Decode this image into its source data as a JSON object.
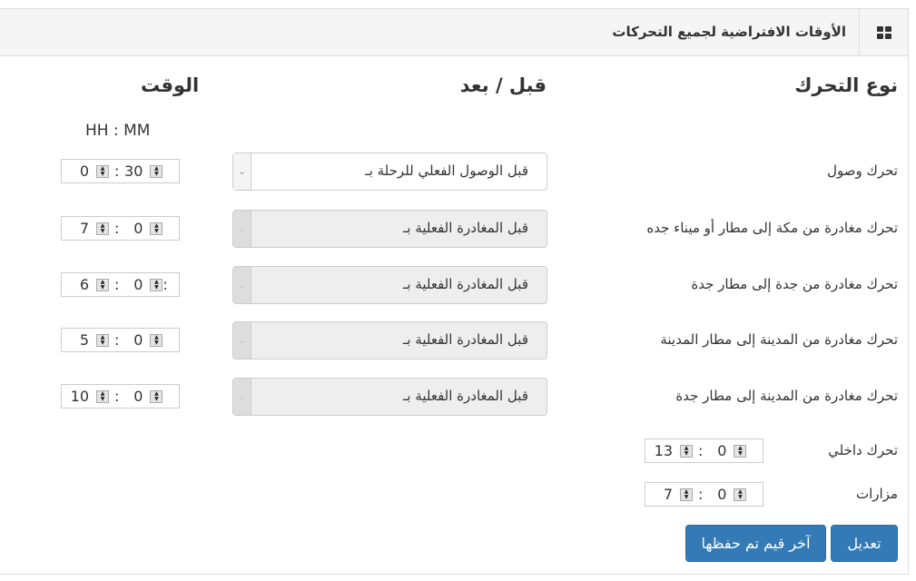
{
  "header": {
    "title": "الأوقات الافتراضية لجميع التحركات",
    "icon": "grid-icon"
  },
  "columns": {
    "type": "نوع التحرك",
    "before_after": "قبل / بعد",
    "time": "الوقت",
    "time_format": "HH : MM"
  },
  "rows": [
    {
      "label": "تحرك وصول",
      "select": "قبل الوصول الفعلي للرحلة بـ",
      "disabled": false,
      "hours": "0",
      "minutes": "30"
    },
    {
      "label": "تحرك مغادرة من مكة إلى مطار أو ميناء جده",
      "select": "قبل المغادرة الفعلية بـ",
      "disabled": true,
      "hours": "7",
      "minutes": "0"
    },
    {
      "label": "تحرك مغادرة من جدة إلى مطار جدة",
      "select": "قبل المغادرة الفعلية بـ",
      "disabled": true,
      "hours": "6",
      "minutes": "0",
      "trailing": ":"
    },
    {
      "label": "تحرك مغادرة من المدينة إلى مطار المدينة",
      "select": "قبل المغادرة الفعلية بـ",
      "disabled": true,
      "hours": "5",
      "minutes": "0"
    },
    {
      "label": "تحرك مغادرة من المدينة إلى مطار جدة",
      "select": "قبل المغادرة الفعلية بـ",
      "disabled": true,
      "hours": "10",
      "minutes": "0"
    }
  ],
  "extra_rows": [
    {
      "label": "تحرك داخلي",
      "hours": "13",
      "minutes": "0"
    },
    {
      "label": "مزارات",
      "hours": "7",
      "minutes": "0"
    }
  ],
  "separator": ":",
  "buttons": {
    "edit": "تعديل",
    "last_saved": "آخر قيم تم حفظها"
  },
  "colors": {
    "primary": "#337ab7"
  }
}
